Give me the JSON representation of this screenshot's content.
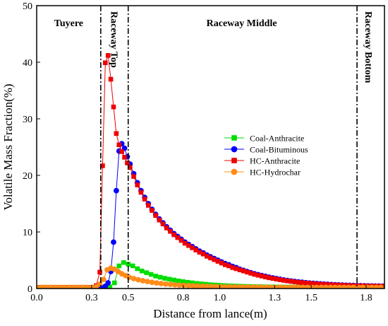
{
  "chart_data": {
    "type": "line",
    "xlabel": "Distance from lance(m)",
    "ylabel": "Volatile Mass Fraction(%)",
    "xlim": [
      0,
      1.9
    ],
    "ylim": [
      0,
      50
    ],
    "x_ticks": [
      0.0,
      0.3,
      0.5,
      0.8,
      1.0,
      1.3,
      1.5,
      1.8
    ],
    "x_tick_labels": [
      "0.0",
      "0.3",
      "0.5",
      "0.8",
      "1.0",
      "1.3",
      "1.5",
      "1.8"
    ],
    "y_ticks": [
      0,
      10,
      20,
      30,
      40,
      50
    ],
    "y_tick_labels": [
      "0",
      "10",
      "20",
      "30",
      "40",
      "50"
    ],
    "grid": false,
    "legend_position": "center-right",
    "region_lines": [
      0.35,
      0.5,
      1.75
    ],
    "regions": [
      {
        "label": "Tuyere",
        "x": 0.175,
        "orientation": "horizontal"
      },
      {
        "label": "Raceway Top",
        "x": 0.43,
        "orientation": "vertical"
      },
      {
        "label": "Raceway Middle",
        "x": 1.12,
        "orientation": "horizontal"
      },
      {
        "label": "Raceway Bottom",
        "x": 1.82,
        "orientation": "vertical"
      }
    ],
    "series": [
      {
        "name": "Coal-Anthracite",
        "color": "#00dd00",
        "marker": "square",
        "x": [
          0.0,
          0.025,
          0.05,
          0.075,
          0.1,
          0.125,
          0.15,
          0.175,
          0.2,
          0.225,
          0.25,
          0.275,
          0.3,
          0.325,
          0.35,
          0.375,
          0.4,
          0.425,
          0.45,
          0.475,
          0.5,
          0.525,
          0.55,
          0.575,
          0.6,
          0.625,
          0.65,
          0.675,
          0.7,
          0.725,
          0.75,
          0.775,
          0.8,
          0.825,
          0.85,
          0.875,
          0.9,
          0.925,
          0.95,
          0.975,
          1.0,
          1.025,
          1.05,
          1.075,
          1.1,
          1.125,
          1.15,
          1.175,
          1.2,
          1.225,
          1.25,
          1.275,
          1.3,
          1.325,
          1.35,
          1.375,
          1.4,
          1.425,
          1.45,
          1.475,
          1.5,
          1.525,
          1.55,
          1.575,
          1.6,
          1.625,
          1.65,
          1.675,
          1.7,
          1.725,
          1.75,
          1.775,
          1.8,
          1.825,
          1.85,
          1.875,
          1.9
        ],
        "y": [
          0.2,
          0.2,
          0.2,
          0.2,
          0.2,
          0.2,
          0.2,
          0.2,
          0.2,
          0.2,
          0.2,
          0.2,
          0.2,
          0.2,
          0.2,
          0.2,
          0.3,
          1.0,
          4.0,
          4.6,
          4.3,
          4.0,
          3.5,
          3.1,
          2.8,
          2.5,
          2.2,
          2.0,
          1.8,
          1.65,
          1.5,
          1.35,
          1.22,
          1.1,
          1.0,
          0.9,
          0.82,
          0.75,
          0.68,
          0.62,
          0.57,
          0.52,
          0.48,
          0.45,
          0.42,
          0.39,
          0.37,
          0.35,
          0.33,
          0.32,
          0.3,
          0.29,
          0.28,
          0.27,
          0.26,
          0.25,
          0.25,
          0.24,
          0.24,
          0.23,
          0.23,
          0.22,
          0.22,
          0.22,
          0.21,
          0.21,
          0.21,
          0.21,
          0.2,
          0.2,
          0.2,
          0.2,
          0.2,
          0.2,
          0.2,
          0.2,
          0.2
        ]
      },
      {
        "name": "Coal-Bituminous",
        "color": "#0000ff",
        "marker": "circle",
        "x": [
          0.0,
          0.025,
          0.05,
          0.075,
          0.1,
          0.125,
          0.15,
          0.175,
          0.2,
          0.225,
          0.25,
          0.275,
          0.3,
          0.325,
          0.35,
          0.375,
          0.39,
          0.405,
          0.42,
          0.435,
          0.45,
          0.465,
          0.48,
          0.495,
          0.51,
          0.53,
          0.55,
          0.57,
          0.59,
          0.61,
          0.63,
          0.65,
          0.67,
          0.69,
          0.71,
          0.73,
          0.75,
          0.77,
          0.79,
          0.81,
          0.83,
          0.85,
          0.87,
          0.89,
          0.91,
          0.93,
          0.95,
          0.97,
          0.99,
          1.01,
          1.03,
          1.05,
          1.07,
          1.09,
          1.11,
          1.13,
          1.15,
          1.17,
          1.19,
          1.21,
          1.23,
          1.25,
          1.27,
          1.29,
          1.31,
          1.33,
          1.35,
          1.37,
          1.39,
          1.41,
          1.43,
          1.45,
          1.47,
          1.49,
          1.51,
          1.53,
          1.55,
          1.57,
          1.59,
          1.61,
          1.63,
          1.65,
          1.67,
          1.69,
          1.71,
          1.73,
          1.75,
          1.77,
          1.79,
          1.81,
          1.83,
          1.85,
          1.87,
          1.89
        ],
        "y": [
          0.1,
          0.1,
          0.1,
          0.1,
          0.1,
          0.1,
          0.1,
          0.1,
          0.1,
          0.1,
          0.1,
          0.1,
          0.1,
          0.1,
          0.2,
          0.4,
          1.0,
          3.0,
          8.2,
          17.3,
          24.3,
          25.6,
          24.8,
          23.3,
          22.0,
          20.3,
          18.7,
          17.3,
          16.1,
          15.0,
          14.0,
          13.1,
          12.3,
          11.6,
          10.9,
          10.3,
          9.7,
          9.2,
          8.7,
          8.2,
          7.8,
          7.4,
          7.0,
          6.6,
          6.3,
          5.9,
          5.6,
          5.3,
          5.0,
          4.7,
          4.4,
          4.2,
          3.9,
          3.7,
          3.4,
          3.2,
          3.0,
          2.8,
          2.6,
          2.45,
          2.3,
          2.15,
          2.0,
          1.87,
          1.75,
          1.63,
          1.52,
          1.42,
          1.33,
          1.25,
          1.17,
          1.1,
          1.03,
          0.97,
          0.92,
          0.87,
          0.82,
          0.78,
          0.74,
          0.7,
          0.67,
          0.64,
          0.61,
          0.58,
          0.56,
          0.54,
          0.52,
          0.5,
          0.48,
          0.46,
          0.45,
          0.44,
          0.43,
          0.42
        ]
      },
      {
        "name": "HC-Anthracite",
        "color": "#ee0000",
        "marker": "square",
        "x": [
          0.0,
          0.025,
          0.05,
          0.075,
          0.1,
          0.125,
          0.15,
          0.175,
          0.2,
          0.225,
          0.25,
          0.275,
          0.3,
          0.325,
          0.345,
          0.36,
          0.375,
          0.39,
          0.405,
          0.42,
          0.435,
          0.45,
          0.465,
          0.48,
          0.495,
          0.51,
          0.53,
          0.55,
          0.57,
          0.59,
          0.61,
          0.63,
          0.65,
          0.67,
          0.69,
          0.71,
          0.73,
          0.75,
          0.77,
          0.79,
          0.81,
          0.83,
          0.85,
          0.87,
          0.89,
          0.91,
          0.93,
          0.95,
          0.97,
          0.99,
          1.01,
          1.03,
          1.05,
          1.07,
          1.09,
          1.11,
          1.13,
          1.15,
          1.17,
          1.19,
          1.21,
          1.23,
          1.25,
          1.27,
          1.29,
          1.31,
          1.33,
          1.35,
          1.37,
          1.39,
          1.41,
          1.43,
          1.45,
          1.47,
          1.49,
          1.51,
          1.53,
          1.55,
          1.57,
          1.59,
          1.61,
          1.63,
          1.65,
          1.67,
          1.69,
          1.71,
          1.73,
          1.75,
          1.77,
          1.79,
          1.81,
          1.83,
          1.85,
          1.87,
          1.89
        ],
        "y": [
          0.2,
          0.2,
          0.2,
          0.2,
          0.2,
          0.2,
          0.2,
          0.2,
          0.2,
          0.2,
          0.2,
          0.2,
          0.2,
          0.5,
          2.9,
          21.7,
          39.9,
          41.2,
          37.0,
          32.1,
          27.4,
          25.4,
          24.2,
          23.2,
          22.2,
          21.4,
          19.8,
          18.3,
          17.0,
          15.8,
          14.7,
          13.8,
          12.9,
          12.1,
          11.4,
          10.7,
          10.1,
          9.5,
          9.0,
          8.5,
          8.0,
          7.6,
          7.2,
          6.8,
          6.4,
          6.1,
          5.7,
          5.4,
          5.1,
          4.8,
          4.5,
          4.2,
          4.0,
          3.7,
          3.5,
          3.3,
          3.1,
          2.9,
          2.7,
          2.5,
          2.35,
          2.2,
          2.05,
          1.9,
          1.78,
          1.66,
          1.55,
          1.45,
          1.35,
          1.26,
          1.18,
          1.1,
          1.03,
          0.97,
          0.91,
          0.86,
          0.81,
          0.77,
          0.73,
          0.69,
          0.66,
          0.63,
          0.6,
          0.57,
          0.55,
          0.53,
          0.51,
          0.49,
          0.47,
          0.46,
          0.44,
          0.43,
          0.42,
          0.41,
          0.4
        ]
      },
      {
        "name": "HC-Hydrochar",
        "color": "#ff8c1a",
        "marker": "circle",
        "x": [
          0.0,
          0.025,
          0.05,
          0.075,
          0.1,
          0.125,
          0.15,
          0.175,
          0.2,
          0.225,
          0.25,
          0.275,
          0.3,
          0.325,
          0.345,
          0.365,
          0.385,
          0.405,
          0.425,
          0.445,
          0.465,
          0.485,
          0.505,
          0.53,
          0.555,
          0.58,
          0.605,
          0.63,
          0.655,
          0.68,
          0.705,
          0.73,
          0.755,
          0.78,
          0.805,
          0.83,
          0.855,
          0.88,
          0.905,
          0.93,
          0.955,
          0.98,
          1.005,
          1.03,
          1.055,
          1.08,
          1.105,
          1.13,
          1.155,
          1.18,
          1.205,
          1.23,
          1.255,
          1.28,
          1.305,
          1.33,
          1.355,
          1.38,
          1.405,
          1.43,
          1.455,
          1.48,
          1.505,
          1.53,
          1.555,
          1.58,
          1.605,
          1.63,
          1.655,
          1.68,
          1.705,
          1.73,
          1.755,
          1.78,
          1.805,
          1.83,
          1.855,
          1.88
        ],
        "y": [
          0.2,
          0.2,
          0.2,
          0.2,
          0.2,
          0.2,
          0.2,
          0.2,
          0.2,
          0.2,
          0.2,
          0.2,
          0.2,
          0.3,
          0.8,
          1.6,
          3.3,
          3.6,
          3.4,
          3.0,
          2.6,
          2.3,
          2.0,
          1.75,
          1.55,
          1.38,
          1.23,
          1.1,
          0.98,
          0.88,
          0.8,
          0.73,
          0.66,
          0.6,
          0.55,
          0.51,
          0.47,
          0.44,
          0.41,
          0.38,
          0.36,
          0.34,
          0.32,
          0.31,
          0.29,
          0.28,
          0.27,
          0.26,
          0.25,
          0.25,
          0.24,
          0.23,
          0.23,
          0.22,
          0.22,
          0.22,
          0.21,
          0.21,
          0.21,
          0.21,
          0.2,
          0.2,
          0.2,
          0.2,
          0.2,
          0.2,
          0.2,
          0.2,
          0.2,
          0.2,
          0.2,
          0.2,
          0.2,
          0.2,
          0.2,
          0.2,
          0.2,
          0.2
        ]
      }
    ]
  }
}
